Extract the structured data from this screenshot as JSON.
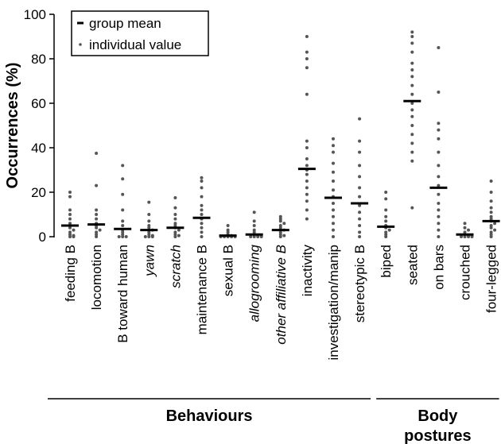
{
  "chart_data": {
    "type": "dot",
    "y_label": "Occurrences (%)",
    "ylim": [
      0,
      100
    ],
    "yticks": [
      0,
      20,
      40,
      60,
      80,
      100
    ],
    "groups": [
      {
        "label": "Behaviours",
        "categories": [
          "feeding B",
          "locomotion",
          "B toward human",
          "yawn",
          "scratch",
          "maintenance B",
          "sexual B",
          "allogrooming",
          "other affiliative B",
          "inactivity",
          "investigation/manip",
          "stereotypic B"
        ],
        "italic": [
          false,
          false,
          false,
          true,
          true,
          false,
          false,
          true,
          true,
          false,
          false,
          false
        ]
      },
      {
        "label": "Body postures",
        "categories": [
          "biped",
          "seated",
          "on bars",
          "crouched",
          "four-legged"
        ],
        "italic": [
          false,
          false,
          false,
          false,
          false
        ]
      }
    ],
    "series": [
      {
        "name": "group mean",
        "color": "#000000",
        "values": [
          5,
          5.5,
          3.5,
          3,
          4,
          8.5,
          0.5,
          1,
          3,
          30.5,
          17.5,
          15,
          4.5,
          61,
          22,
          1,
          7
        ]
      },
      {
        "name": "individual value",
        "color": "#555555",
        "values": [
          [
            20,
            18,
            12,
            10,
            8,
            6,
            5,
            4,
            3,
            2,
            1,
            0.5,
            0,
            0
          ],
          [
            37.5,
            23,
            12,
            10,
            8,
            6,
            5,
            4,
            3,
            2,
            1,
            0
          ],
          [
            32,
            26,
            19,
            12,
            7,
            5,
            3,
            2,
            1,
            0,
            0,
            0
          ],
          [
            15.5,
            10,
            7,
            5,
            4,
            3,
            2,
            1,
            0.5,
            0,
            0,
            0
          ],
          [
            17.5,
            13,
            10,
            8,
            6,
            5,
            4,
            3,
            2,
            1,
            0.5,
            0
          ],
          [
            26.5,
            25,
            22,
            18,
            14,
            12,
            10,
            8,
            6,
            4,
            2,
            0
          ],
          [
            5,
            3,
            2,
            1,
            0.5,
            0,
            0,
            0,
            0,
            0
          ],
          [
            11,
            7,
            5,
            3,
            2,
            1,
            0.5,
            0,
            0,
            0,
            0
          ],
          [
            9,
            8,
            7,
            6,
            5,
            4,
            3,
            2,
            1,
            0.5,
            0
          ],
          [
            90,
            83,
            80,
            76,
            64,
            43,
            40,
            35,
            32,
            30,
            28,
            25,
            22,
            19,
            16,
            12,
            8
          ],
          [
            44,
            41,
            38,
            33,
            29,
            25,
            21,
            18,
            15,
            12,
            9,
            6,
            3,
            0
          ],
          [
            53,
            43,
            38,
            32,
            27,
            22,
            18,
            14,
            11,
            8,
            5,
            2,
            0
          ],
          [
            20,
            17,
            12,
            9,
            7,
            5,
            4,
            3,
            2,
            1,
            0
          ],
          [
            92,
            90,
            87,
            83,
            78,
            75,
            72,
            68,
            64,
            60,
            57,
            54,
            50,
            46,
            42,
            38,
            34,
            13
          ],
          [
            85,
            65,
            51,
            48,
            44,
            38,
            32,
            27,
            23,
            19,
            15,
            12,
            9,
            6,
            3,
            0
          ],
          [
            6,
            4,
            3,
            2,
            1,
            0.5,
            0,
            0,
            0,
            0
          ],
          [
            25,
            20,
            16,
            13,
            11,
            9,
            8,
            7,
            6,
            5,
            4,
            3,
            2,
            1,
            0
          ]
        ]
      }
    ]
  }
}
